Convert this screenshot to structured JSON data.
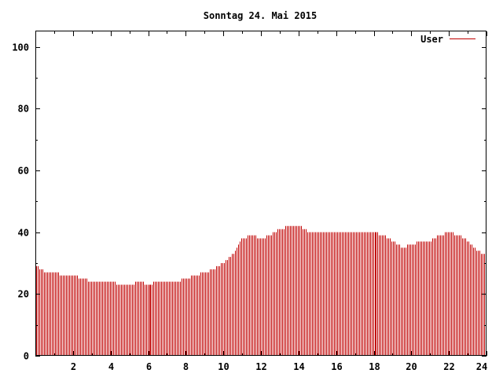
{
  "chart_data": {
    "type": "bar",
    "title": "Sonntag 24. Mai 2015",
    "xlabel": "",
    "ylabel": "",
    "xlim": [
      0,
      24
    ],
    "ylim": [
      0,
      105
    ],
    "x_ticks": [
      "2",
      "4",
      "6",
      "8",
      "10",
      "12",
      "14",
      "16",
      "18",
      "20",
      "22",
      "24"
    ],
    "y_ticks": [
      "0",
      "20",
      "40",
      "60",
      "80",
      "100"
    ],
    "grid": false,
    "legend_position": "top-right",
    "series": [
      {
        "name": "User",
        "color": "#c00000",
        "hours": [
          0,
          0.5,
          1,
          1.5,
          2,
          2.5,
          3,
          3.5,
          4,
          4.5,
          5,
          5.5,
          6,
          6.5,
          7,
          7.5,
          8,
          8.5,
          9,
          9.5,
          10,
          10.5,
          11,
          11.5,
          12,
          12.5,
          13,
          13.5,
          14,
          14.5,
          15,
          15.5,
          16,
          16.5,
          17,
          17.5,
          18,
          18.5,
          19,
          19.5,
          20,
          20.5,
          21,
          21.5,
          22,
          22.5,
          23,
          23.5,
          24
        ],
        "values": [
          29,
          27,
          27,
          26,
          26,
          25,
          24,
          24,
          24,
          23,
          23,
          24,
          23,
          24,
          24,
          24,
          25,
          26,
          27,
          28,
          30,
          33,
          38,
          39,
          38,
          39,
          41,
          42,
          42,
          40,
          40,
          40,
          40,
          40,
          40,
          40,
          40,
          39,
          37,
          35,
          36,
          37,
          37,
          39,
          40,
          39,
          37,
          34,
          32
        ]
      }
    ]
  }
}
